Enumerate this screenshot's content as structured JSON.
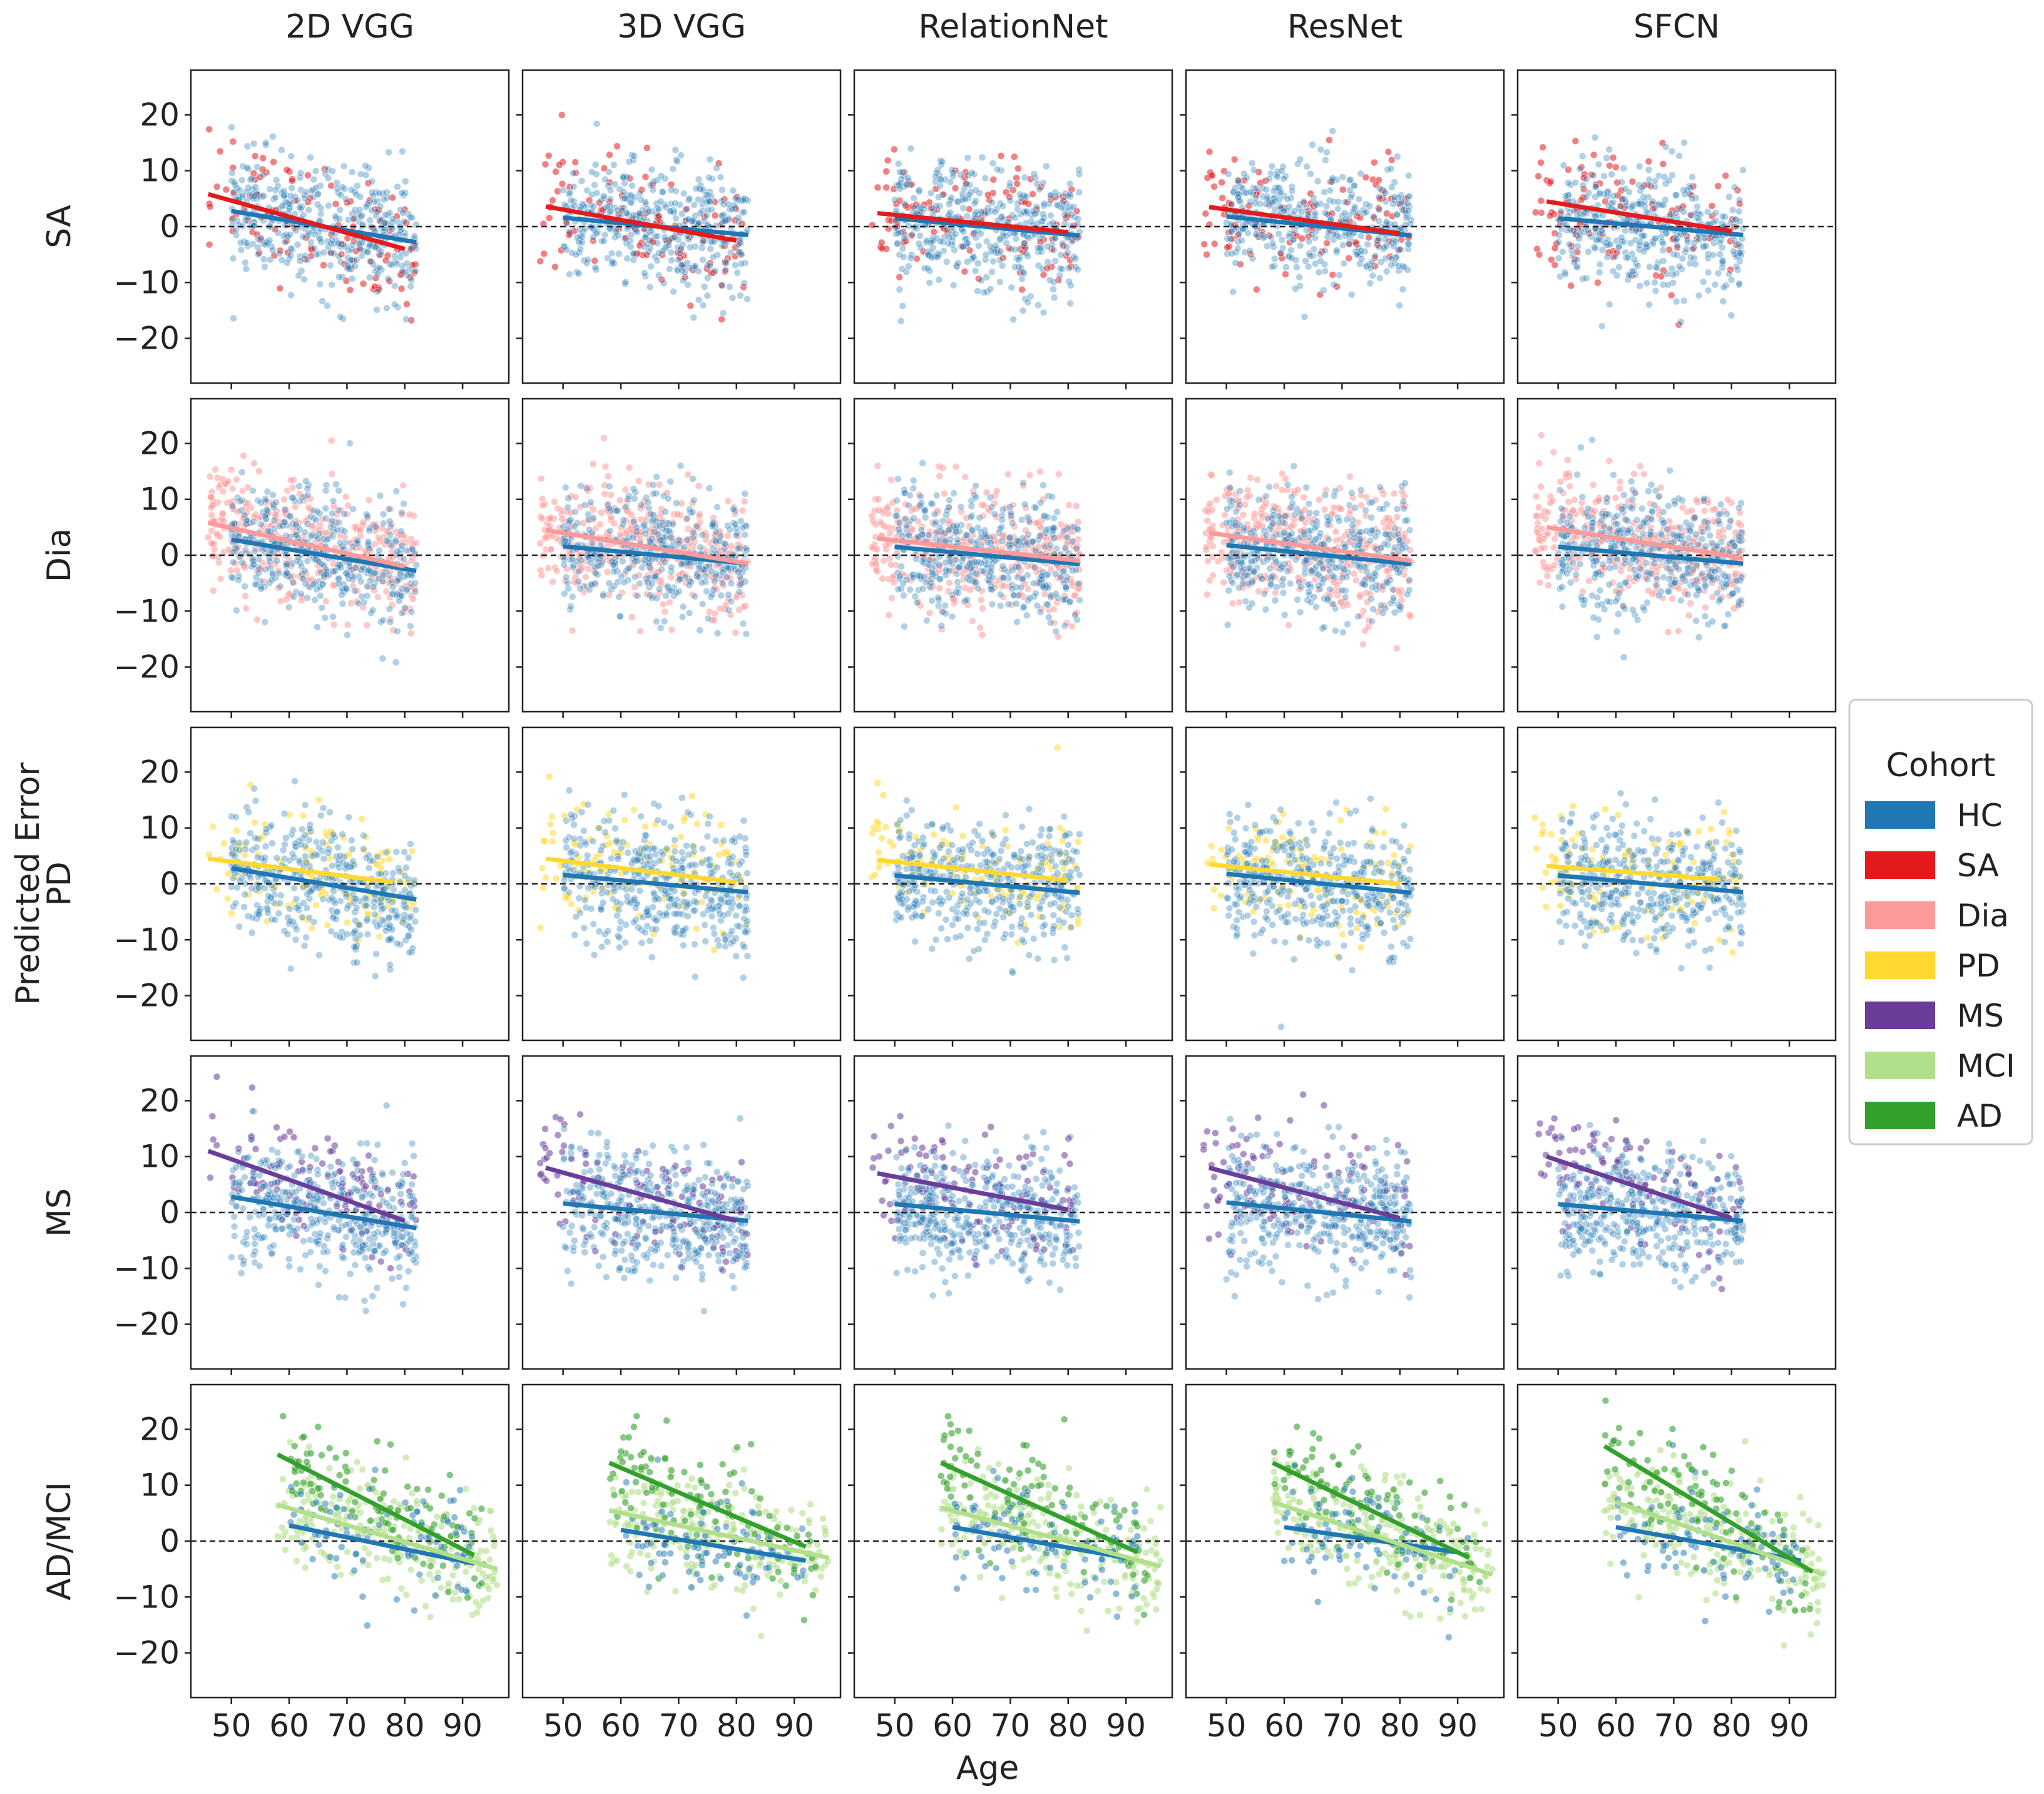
{
  "figure": {
    "ylabel": "Predicted Error",
    "xlabel": "Age",
    "legend_title": "Cohort",
    "legend_placement": "right-center",
    "columns": [
      "2D VGG",
      "3D VGG",
      "RelationNet",
      "ResNet",
      "SFCN"
    ],
    "rows": [
      "SA",
      "Dia",
      "PD",
      "MS",
      "AD/MCI"
    ]
  },
  "colors": {
    "HC": "#1f77b4",
    "SA": "#e41a1c",
    "Dia": "#fb9a99",
    "PD": "#ffd92f",
    "MS": "#6a3d9a",
    "MCI": "#b2df8a",
    "AD": "#33a02c",
    "zero_line": "#222222",
    "frame": "#222222"
  },
  "chart_data": {
    "type": "scatter",
    "description_of_layout": "5x5 grid of scatter plots with regression lines; columns are models, rows are cohorts",
    "xlim": [
      43,
      98
    ],
    "ylim": [
      -28,
      28
    ],
    "xticks": [
      50,
      60,
      70,
      80,
      90
    ],
    "yticks": [
      20,
      10,
      0,
      -10,
      -20
    ],
    "ytick_labels": [
      "20",
      "10",
      "0",
      "−10",
      "−20"
    ],
    "zero_line": 0,
    "legend": [
      {
        "name": "HC"
      },
      {
        "name": "SA"
      },
      {
        "name": "Dia"
      },
      {
        "name": "PD"
      },
      {
        "name": "MS"
      },
      {
        "name": "MCI"
      },
      {
        "name": "AD"
      }
    ],
    "row_cohorts": [
      {
        "row": "SA",
        "cohorts": [
          "SA"
        ],
        "x_range": [
          46,
          82
        ],
        "y_sd": 5.5
      },
      {
        "row": "Dia",
        "cohorts": [
          "Dia"
        ],
        "x_range": [
          46,
          82
        ],
        "y_sd": 5.5
      },
      {
        "row": "PD",
        "cohorts": [
          "PD"
        ],
        "x_range": [
          46,
          82
        ],
        "y_sd": 5.5
      },
      {
        "row": "MS",
        "cohorts": [
          "MS"
        ],
        "x_range": [
          46,
          82
        ],
        "y_sd": 5.5
      },
      {
        "row": "AD/MCI",
        "cohorts": [
          "MCI",
          "AD"
        ],
        "x_range": [
          56,
          96
        ],
        "y_sd": 5.0
      }
    ],
    "regression_lines": [
      [
        {
          "model": "2D VGG",
          "lines": [
            {
              "cohort": "HC",
              "x": [
                50,
                82
              ],
              "y": [
                2.8,
                -2.8
              ]
            },
            {
              "cohort": "SA",
              "x": [
                46,
                80
              ],
              "y": [
                5.8,
                -4.0
              ]
            }
          ]
        },
        {
          "model": "3D VGG",
          "lines": [
            {
              "cohort": "HC",
              "x": [
                50,
                82
              ],
              "y": [
                1.6,
                -1.5
              ]
            },
            {
              "cohort": "SA",
              "x": [
                47,
                80
              ],
              "y": [
                3.6,
                -2.5
              ]
            }
          ]
        },
        {
          "model": "RelationNet",
          "lines": [
            {
              "cohort": "HC",
              "x": [
                50,
                82
              ],
              "y": [
                1.5,
                -1.6
              ]
            },
            {
              "cohort": "SA",
              "x": [
                47,
                80
              ],
              "y": [
                2.4,
                -1.0
              ]
            }
          ]
        },
        {
          "model": "ResNet",
          "lines": [
            {
              "cohort": "HC",
              "x": [
                50,
                82
              ],
              "y": [
                1.8,
                -1.6
              ]
            },
            {
              "cohort": "SA",
              "x": [
                47,
                80
              ],
              "y": [
                3.5,
                -1.2
              ]
            }
          ]
        },
        {
          "model": "SFCN",
          "lines": [
            {
              "cohort": "HC",
              "x": [
                50,
                82
              ],
              "y": [
                1.5,
                -1.5
              ]
            },
            {
              "cohort": "SA",
              "x": [
                48,
                80
              ],
              "y": [
                4.5,
                -0.8
              ]
            }
          ]
        }
      ],
      [
        {
          "model": "2D VGG",
          "lines": [
            {
              "cohort": "HC",
              "x": [
                50,
                82
              ],
              "y": [
                2.8,
                -2.8
              ]
            },
            {
              "cohort": "Dia",
              "x": [
                46,
                80
              ],
              "y": [
                5.8,
                -2.0
              ]
            }
          ]
        },
        {
          "model": "3D VGG",
          "lines": [
            {
              "cohort": "HC",
              "x": [
                50,
                82
              ],
              "y": [
                1.6,
                -1.5
              ]
            },
            {
              "cohort": "Dia",
              "x": [
                47,
                82
              ],
              "y": [
                4.5,
                -1.5
              ]
            }
          ]
        },
        {
          "model": "RelationNet",
          "lines": [
            {
              "cohort": "HC",
              "x": [
                50,
                82
              ],
              "y": [
                1.5,
                -1.6
              ]
            },
            {
              "cohort": "Dia",
              "x": [
                47,
                82
              ],
              "y": [
                3.0,
                -1.0
              ]
            }
          ]
        },
        {
          "model": "ResNet",
          "lines": [
            {
              "cohort": "HC",
              "x": [
                50,
                82
              ],
              "y": [
                1.8,
                -1.6
              ]
            },
            {
              "cohort": "Dia",
              "x": [
                47,
                82
              ],
              "y": [
                4.0,
                -1.0
              ]
            }
          ]
        },
        {
          "model": "SFCN",
          "lines": [
            {
              "cohort": "HC",
              "x": [
                50,
                82
              ],
              "y": [
                1.5,
                -1.5
              ]
            },
            {
              "cohort": "Dia",
              "x": [
                48,
                82
              ],
              "y": [
                5.0,
                -0.5
              ]
            }
          ]
        }
      ],
      [
        {
          "model": "2D VGG",
          "lines": [
            {
              "cohort": "HC",
              "x": [
                50,
                82
              ],
              "y": [
                2.8,
                -2.8
              ]
            },
            {
              "cohort": "PD",
              "x": [
                46,
                78
              ],
              "y": [
                4.5,
                0.3
              ]
            }
          ]
        },
        {
          "model": "3D VGG",
          "lines": [
            {
              "cohort": "HC",
              "x": [
                50,
                82
              ],
              "y": [
                1.6,
                -1.5
              ]
            },
            {
              "cohort": "PD",
              "x": [
                47,
                80
              ],
              "y": [
                4.5,
                0.3
              ]
            }
          ]
        },
        {
          "model": "RelationNet",
          "lines": [
            {
              "cohort": "HC",
              "x": [
                50,
                82
              ],
              "y": [
                1.5,
                -1.6
              ]
            },
            {
              "cohort": "PD",
              "x": [
                47,
                80
              ],
              "y": [
                4.3,
                0.6
              ]
            }
          ]
        },
        {
          "model": "ResNet",
          "lines": [
            {
              "cohort": "HC",
              "x": [
                50,
                82
              ],
              "y": [
                1.8,
                -1.6
              ]
            },
            {
              "cohort": "PD",
              "x": [
                47,
                80
              ],
              "y": [
                3.5,
                0.0
              ]
            }
          ]
        },
        {
          "model": "SFCN",
          "lines": [
            {
              "cohort": "HC",
              "x": [
                50,
                82
              ],
              "y": [
                1.5,
                -1.5
              ]
            },
            {
              "cohort": "PD",
              "x": [
                48,
                78
              ],
              "y": [
                3.2,
                0.8
              ]
            }
          ]
        }
      ],
      [
        {
          "model": "2D VGG",
          "lines": [
            {
              "cohort": "HC",
              "x": [
                50,
                82
              ],
              "y": [
                2.8,
                -2.8
              ]
            },
            {
              "cohort": "MS",
              "x": [
                46,
                80
              ],
              "y": [
                11.0,
                -1.5
              ]
            }
          ]
        },
        {
          "model": "3D VGG",
          "lines": [
            {
              "cohort": "HC",
              "x": [
                50,
                82
              ],
              "y": [
                1.6,
                -1.5
              ]
            },
            {
              "cohort": "MS",
              "x": [
                47,
                80
              ],
              "y": [
                8.0,
                -1.5
              ]
            }
          ]
        },
        {
          "model": "RelationNet",
          "lines": [
            {
              "cohort": "HC",
              "x": [
                50,
                82
              ],
              "y": [
                1.5,
                -1.6
              ]
            },
            {
              "cohort": "MS",
              "x": [
                47,
                80
              ],
              "y": [
                7.0,
                0.5
              ]
            }
          ]
        },
        {
          "model": "ResNet",
          "lines": [
            {
              "cohort": "HC",
              "x": [
                50,
                82
              ],
              "y": [
                1.8,
                -1.6
              ]
            },
            {
              "cohort": "MS",
              "x": [
                47,
                80
              ],
              "y": [
                8.0,
                -1.0
              ]
            }
          ]
        },
        {
          "model": "SFCN",
          "lines": [
            {
              "cohort": "HC",
              "x": [
                50,
                82
              ],
              "y": [
                1.5,
                -1.5
              ]
            },
            {
              "cohort": "MS",
              "x": [
                48,
                80
              ],
              "y": [
                10.0,
                -1.0
              ]
            }
          ]
        }
      ],
      [
        {
          "model": "2D VGG",
          "lines": [
            {
              "cohort": "HC",
              "x": [
                60,
                92
              ],
              "y": [
                2.8,
                -4.0
              ]
            },
            {
              "cohort": "MCI",
              "x": [
                58,
                96
              ],
              "y": [
                6.5,
                -5.0
              ]
            },
            {
              "cohort": "AD",
              "x": [
                58,
                92
              ],
              "y": [
                15.5,
                -2.5
              ]
            }
          ]
        },
        {
          "model": "3D VGG",
          "lines": [
            {
              "cohort": "HC",
              "x": [
                60,
                92
              ],
              "y": [
                2.0,
                -3.5
              ]
            },
            {
              "cohort": "MCI",
              "x": [
                58,
                96
              ],
              "y": [
                5.5,
                -3.0
              ]
            },
            {
              "cohort": "AD",
              "x": [
                58,
                92
              ],
              "y": [
                14.0,
                -1.0
              ]
            }
          ]
        },
        {
          "model": "RelationNet",
          "lines": [
            {
              "cohort": "HC",
              "x": [
                60,
                90
              ],
              "y": [
                2.5,
                -3.0
              ]
            },
            {
              "cohort": "MCI",
              "x": [
                58,
                96
              ],
              "y": [
                6.0,
                -4.5
              ]
            },
            {
              "cohort": "AD",
              "x": [
                58,
                92
              ],
              "y": [
                14.0,
                -2.0
              ]
            }
          ]
        },
        {
          "model": "ResNet",
          "lines": [
            {
              "cohort": "HC",
              "x": [
                60,
                90
              ],
              "y": [
                2.5,
                -2.0
              ]
            },
            {
              "cohort": "MCI",
              "x": [
                58,
                96
              ],
              "y": [
                7.0,
                -6.0
              ]
            },
            {
              "cohort": "AD",
              "x": [
                58,
                92
              ],
              "y": [
                14.0,
                -3.0
              ]
            }
          ]
        },
        {
          "model": "SFCN",
          "lines": [
            {
              "cohort": "HC",
              "x": [
                60,
                92
              ],
              "y": [
                2.5,
                -3.5
              ]
            },
            {
              "cohort": "MCI",
              "x": [
                60,
                96
              ],
              "y": [
                7.0,
                -6.0
              ]
            },
            {
              "cohort": "AD",
              "x": [
                58,
                94
              ],
              "y": [
                17.0,
                -5.5
              ]
            }
          ]
        }
      ]
    ]
  }
}
